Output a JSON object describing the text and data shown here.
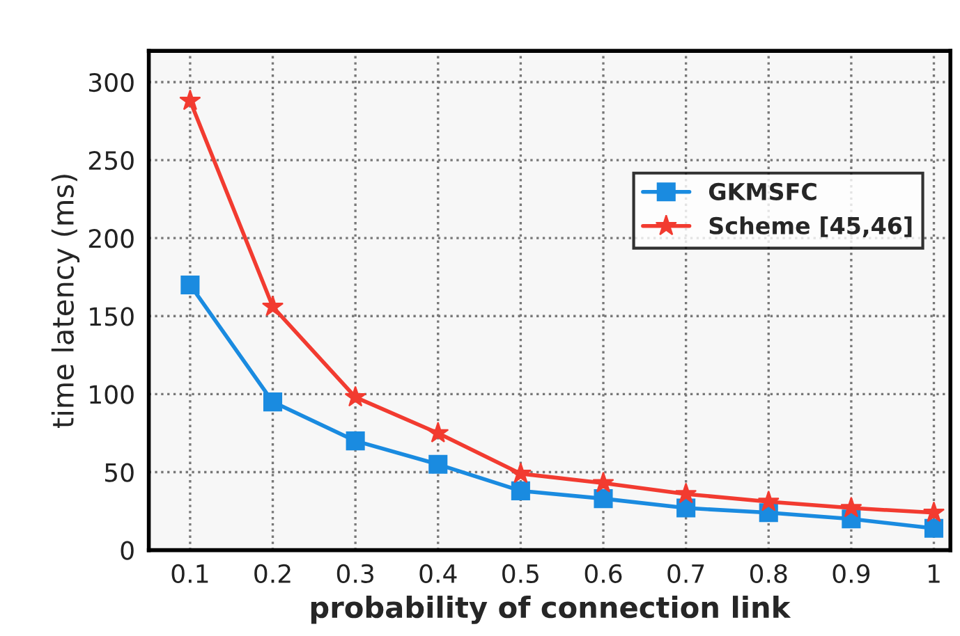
{
  "chart_data": {
    "type": "line",
    "xlabel": "probability of connection link",
    "ylabel": "time latency (ms)",
    "x": [
      0.1,
      0.2,
      0.3,
      0.4,
      0.5,
      0.6,
      0.7,
      0.8,
      0.9,
      1
    ],
    "series": [
      {
        "name": "GKMSFC",
        "color": "#1a8be0",
        "marker": "square",
        "values": [
          170,
          95,
          70,
          55,
          38,
          33,
          27,
          24,
          20,
          14
        ]
      },
      {
        "name": "Scheme [45,46]",
        "color": "#f23b30",
        "marker": "star",
        "values": [
          288,
          156,
          98,
          75,
          49,
          43,
          36,
          31,
          27,
          24
        ]
      }
    ],
    "xlim": [
      0.05,
      1.02
    ],
    "ylim": [
      0,
      320
    ],
    "xticks": [
      0.1,
      0.2,
      0.3,
      0.4,
      0.5,
      0.6,
      0.7,
      0.8,
      0.9,
      1
    ],
    "yticks": [
      0,
      50,
      100,
      150,
      200,
      250,
      300
    ],
    "grid": true,
    "legend": "right",
    "line_style": "solid"
  }
}
